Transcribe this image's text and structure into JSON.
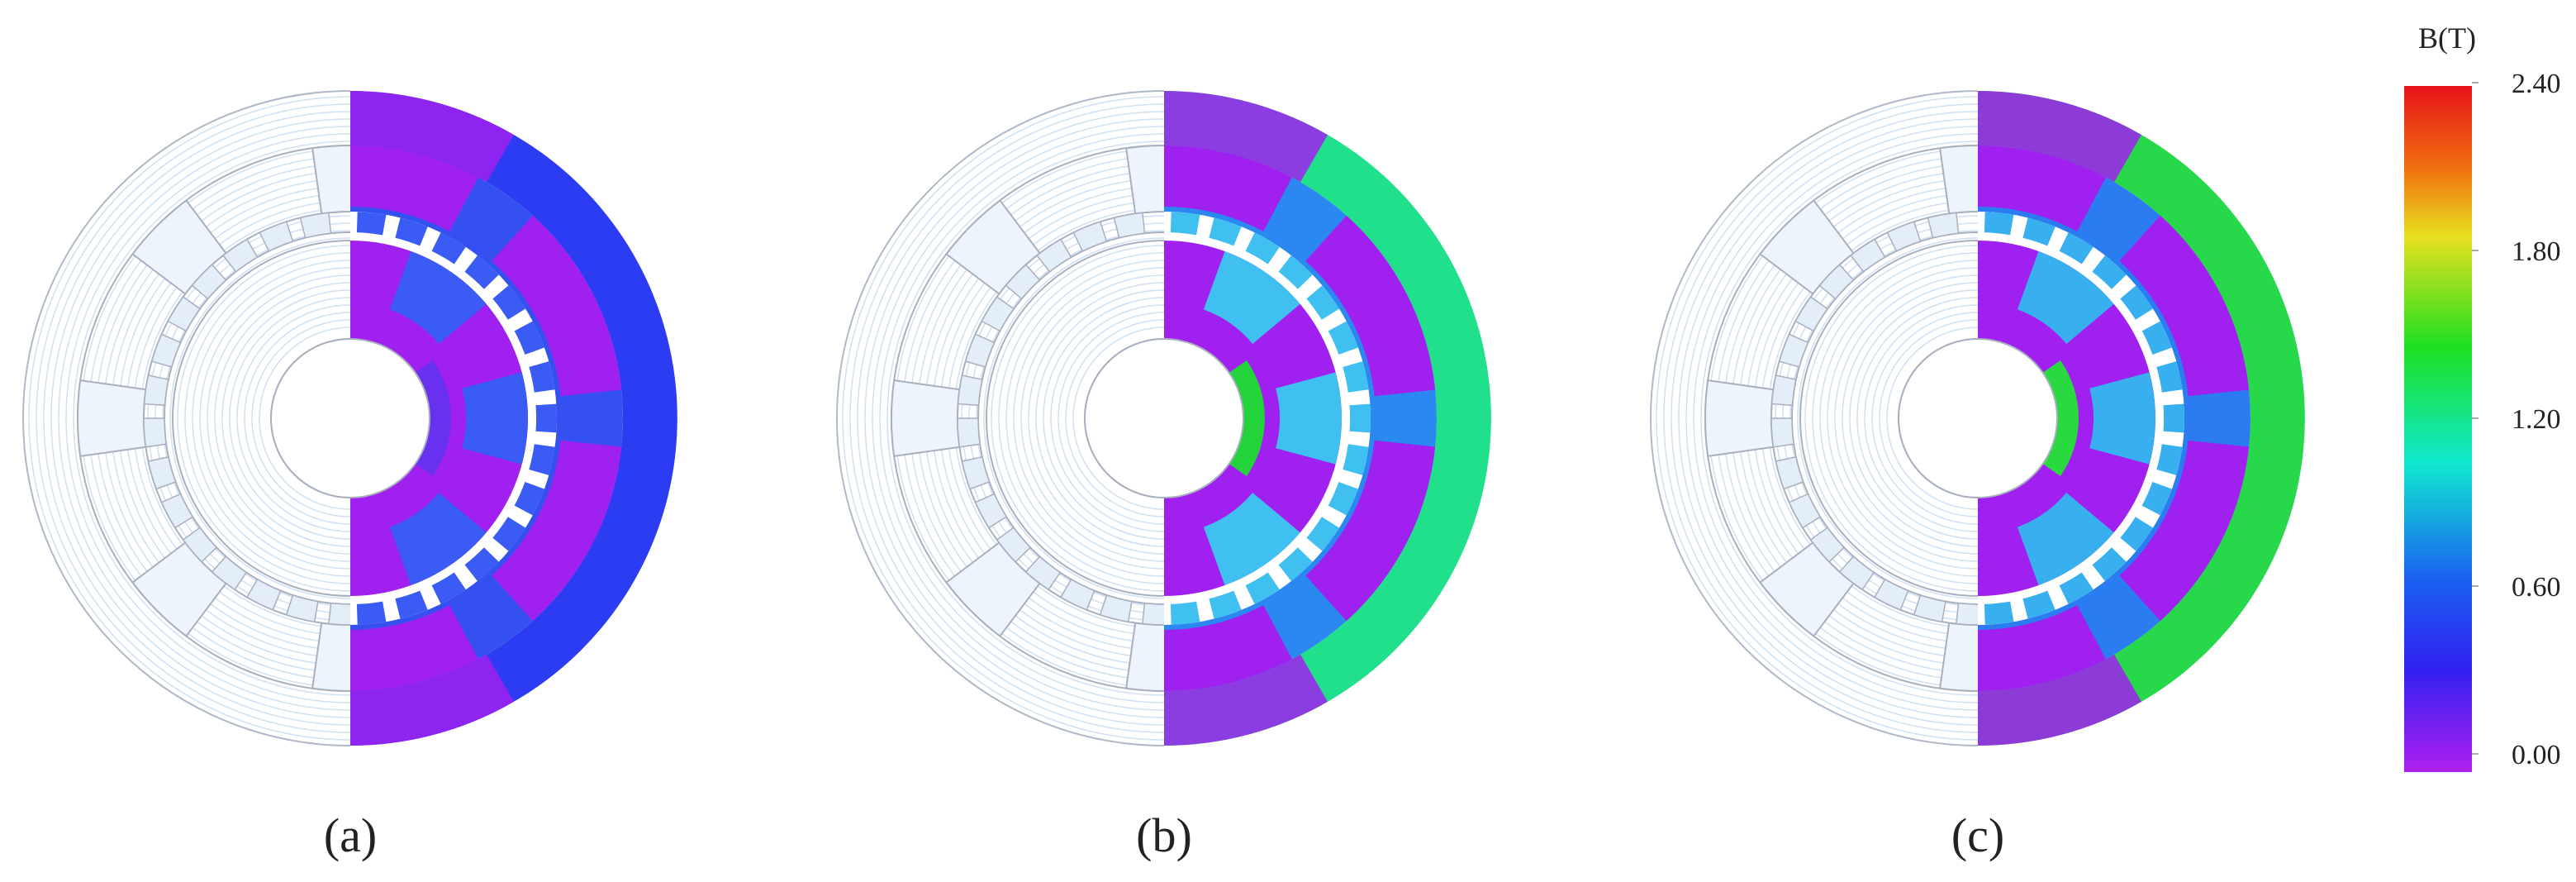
{
  "panels": [
    {
      "label": "(a)"
    },
    {
      "label": "(b)"
    },
    {
      "label": "(c)"
    }
  ],
  "colorbar": {
    "title": "B(T)",
    "range": [
      0,
      2.4
    ],
    "ticks": [
      {
        "value": 2.4,
        "label": "2.40"
      },
      {
        "value": 1.8,
        "label": "1.80"
      },
      {
        "value": 1.2,
        "label": "1.20"
      },
      {
        "value": 0.6,
        "label": "0.60"
      },
      {
        "value": 0,
        "label": "0.00"
      }
    ]
  }
}
